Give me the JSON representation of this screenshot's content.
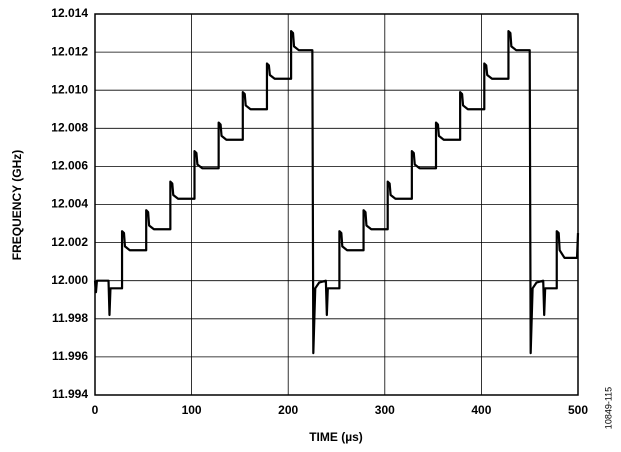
{
  "chart_data": {
    "type": "line",
    "x_label": "TIME (µs)",
    "y_label": "FREQUENCY (GHz)",
    "figure_id": "10849-115",
    "xlim": [
      0,
      500
    ],
    "xticks": [
      0,
      100,
      200,
      300,
      400,
      500
    ],
    "ylim": [
      11.994,
      12.014
    ],
    "yticks": [
      11.994,
      11.996,
      11.998,
      {
        "value": 12,
        "label": "12.000"
      },
      12.002,
      12.004,
      12.006,
      12.008,
      {
        "value": 12.01,
        "label": "12.010"
      },
      12.012,
      12.014
    ],
    "grid": true,
    "series": [
      {
        "color": "#000000",
        "x": [
          0,
          1,
          2,
          14,
          15,
          16,
          28,
          28,
          30,
          31,
          36,
          53,
          53,
          55,
          56,
          61,
          78,
          78,
          80,
          81,
          86,
          103,
          103,
          105,
          106,
          111,
          128,
          128,
          130,
          131,
          136,
          153,
          153,
          155,
          156,
          161,
          178,
          178,
          180,
          181,
          186,
          203,
          203,
          205,
          206,
          211,
          225,
          226,
          228,
          232,
          239,
          240,
          241,
          253,
          253,
          255,
          256,
          261,
          278,
          278,
          280,
          281,
          286,
          303,
          303,
          305,
          306,
          311,
          328,
          328,
          330,
          331,
          336,
          353,
          353,
          355,
          356,
          361,
          378,
          378,
          380,
          381,
          386,
          403,
          403,
          405,
          406,
          411,
          428,
          428,
          430,
          431,
          436,
          450,
          451,
          453,
          457,
          464,
          465,
          466,
          478,
          478,
          480,
          481,
          486,
          499,
          500
        ],
        "values": [
          12,
          11.9994,
          12,
          12,
          11.9982,
          11.9996,
          11.9996,
          12.0026,
          12.0025,
          12.0018,
          12.0016,
          12.0016,
          12.0037,
          12.0036,
          12.0029,
          12.0027,
          12.0027,
          12.0052,
          12.0051,
          12.0045,
          12.0043,
          12.0043,
          12.0068,
          12.0067,
          12.0061,
          12.0059,
          12.0059,
          12.0083,
          12.0082,
          12.0076,
          12.0074,
          12.0074,
          12.0099,
          12.0098,
          12.0092,
          12.009,
          12.009,
          12.0114,
          12.0113,
          12.0108,
          12.0106,
          12.0106,
          12.0131,
          12.013,
          12.0123,
          12.0121,
          12.0121,
          11.9962,
          11.9996,
          11.9999,
          12,
          11.9982,
          11.9996,
          11.9996,
          12.0026,
          12.0025,
          12.0018,
          12.0016,
          12.0016,
          12.0037,
          12.0036,
          12.0029,
          12.0027,
          12.0027,
          12.0052,
          12.0051,
          12.0045,
          12.0043,
          12.0043,
          12.0068,
          12.0067,
          12.0061,
          12.0059,
          12.0059,
          12.0083,
          12.0082,
          12.0076,
          12.0074,
          12.0074,
          12.0099,
          12.0098,
          12.0092,
          12.009,
          12.009,
          12.0114,
          12.0113,
          12.0108,
          12.0106,
          12.0106,
          12.0131,
          12.013,
          12.0123,
          12.0121,
          12.0121,
          11.9962,
          11.9996,
          11.9999,
          12,
          11.9982,
          11.9996,
          11.9996,
          12.0026,
          12.0025,
          12.0016,
          12.0012,
          12.0012,
          12.0025
        ]
      }
    ]
  }
}
